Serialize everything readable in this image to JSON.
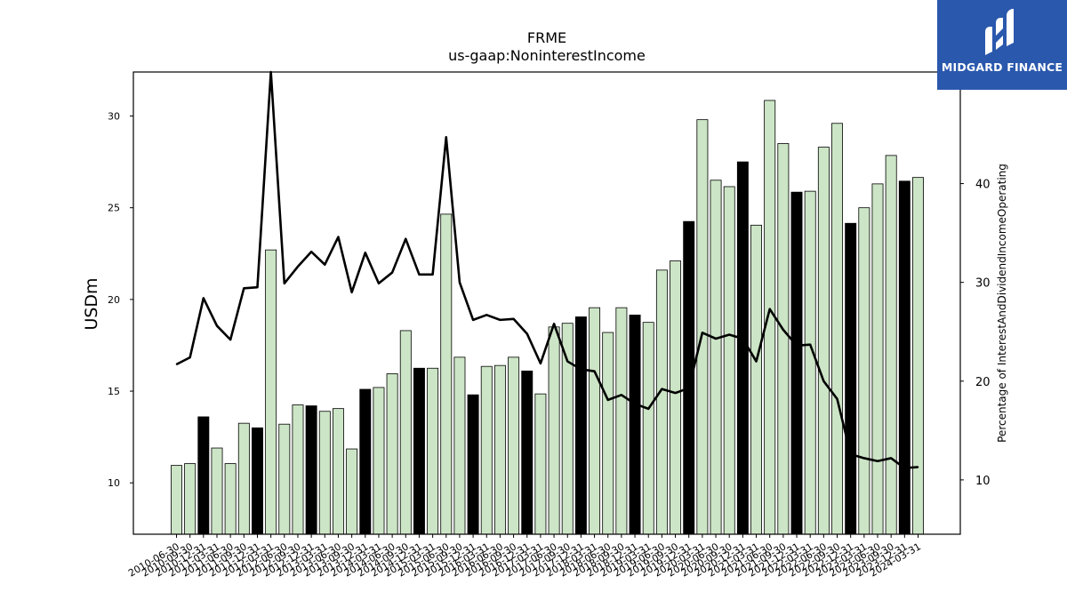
{
  "chart_data": {
    "type": "bar",
    "title": "FRME",
    "subtitle": "us-gaap:NoninterestIncome",
    "ylabel": "USDm",
    "y2label": "Percentage of InterestAndDividendIncomeOperating",
    "ylim": [
      7.2,
      32.4
    ],
    "y2lim": [
      4.5,
      51.3
    ],
    "yticks": [
      10,
      15,
      20,
      25,
      30
    ],
    "y2ticks": [
      10,
      20,
      30,
      40
    ],
    "categories": [
      "2010-06-30",
      "2010-09-30",
      "2010-12-31",
      "2011-03-31",
      "2011-06-30",
      "2011-09-30",
      "2011-12-31",
      "2012-03-31",
      "2012-06-30",
      "2012-09-30",
      "2012-12-31",
      "2013-03-31",
      "2013-06-30",
      "2013-09-30",
      "2013-12-31",
      "2014-03-31",
      "2014-06-30",
      "2014-09-30",
      "2014-12-31",
      "2015-03-31",
      "2015-06-30",
      "2015-09-30",
      "2015-12-31",
      "2016-03-31",
      "2016-06-30",
      "2016-09-30",
      "2016-12-31",
      "2017-03-31",
      "2017-06-30",
      "2017-09-30",
      "2017-12-31",
      "2018-03-31",
      "2018-06-30",
      "2018-09-30",
      "2018-12-31",
      "2019-03-31",
      "2019-06-30",
      "2019-09-30",
      "2019-12-31",
      "2020-03-31",
      "2020-06-30",
      "2020-09-30",
      "2020-12-31",
      "2021-03-31",
      "2021-06-30",
      "2021-09-30",
      "2021-12-31",
      "2022-03-31",
      "2022-06-30",
      "2022-09-30",
      "2022-12-31",
      "2023-03-31",
      "2023-06-30",
      "2023-09-30",
      "2023-12-31",
      "2024-03-31"
    ],
    "series": [
      {
        "type": "bar",
        "values": [
          10.95,
          11.05,
          13.6,
          11.9,
          11.05,
          13.25,
          13.0,
          22.7,
          13.2,
          14.25,
          14.2,
          13.9,
          14.05,
          11.85,
          15.1,
          15.2,
          15.95,
          18.3,
          16.25,
          16.25,
          24.65,
          16.85,
          14.8,
          16.35,
          16.4,
          16.85,
          16.1,
          14.85,
          18.5,
          18.7,
          19.05,
          19.55,
          18.2,
          19.55,
          19.15,
          18.75,
          21.6,
          22.1,
          24.25,
          29.8,
          26.5,
          26.15,
          27.5,
          24.05,
          30.85,
          28.5,
          25.85,
          25.9,
          28.3,
          29.6,
          24.15,
          25.0,
          26.3,
          27.85,
          26.45,
          26.65
        ],
        "highlight": [
          false,
          false,
          true,
          false,
          false,
          false,
          true,
          false,
          false,
          false,
          true,
          false,
          false,
          false,
          true,
          false,
          false,
          false,
          true,
          false,
          false,
          false,
          true,
          false,
          false,
          false,
          true,
          false,
          false,
          false,
          true,
          false,
          false,
          false,
          true,
          false,
          false,
          false,
          true,
          false,
          false,
          false,
          true,
          false,
          false,
          false,
          true,
          false,
          false,
          false,
          true,
          false,
          false,
          false,
          true,
          false
        ]
      },
      {
        "type": "line",
        "axis": "right",
        "values": [
          21.7,
          22.4,
          28.4,
          25.6,
          24.2,
          29.4,
          29.5,
          51.3,
          29.9,
          31.6,
          33.1,
          31.8,
          34.6,
          29.0,
          33.0,
          29.9,
          31.0,
          34.4,
          30.8,
          30.8,
          44.7,
          30.0,
          26.2,
          26.7,
          26.2,
          26.3,
          24.8,
          21.8,
          25.8,
          22.0,
          21.2,
          21.0,
          18.1,
          18.6,
          17.7,
          17.2,
          19.2,
          18.8,
          19.3,
          24.9,
          24.3,
          24.7,
          24.3,
          22.0,
          27.3,
          25.2,
          23.6,
          23.7,
          20.0,
          18.2,
          12.6,
          12.2,
          11.9,
          12.2,
          11.2,
          11.3
        ]
      }
    ],
    "colors": {
      "bar": "#cce5c6",
      "bar_highlight": "#000000",
      "bar_edge": "#000000",
      "line": "#000000"
    },
    "grid": false
  },
  "logo": {
    "text": "MIDGARD FINANCE",
    "color": "#2a58ad"
  }
}
